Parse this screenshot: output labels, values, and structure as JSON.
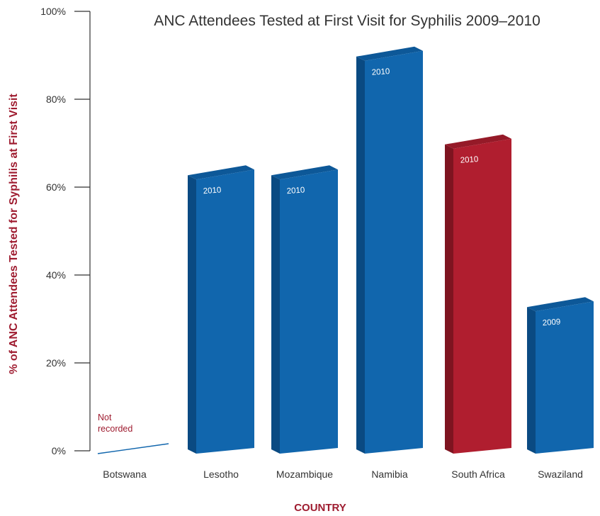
{
  "chart_data": {
    "type": "bar",
    "title": "ANC Attendees Tested at First Visit for Syphilis 2009–2010",
    "ylabel": "% of ANC Attendees Tested for Syphilis at First Visit",
    "xlabel": "COUNTRY",
    "ylim": [
      0,
      100
    ],
    "yticks": [
      "0%",
      "20%",
      "40%",
      "60%",
      "80%",
      "100%"
    ],
    "categories": [
      "Botswana",
      "Lesotho",
      "Mozambique",
      "Namibia",
      "South Africa",
      "Swaziland"
    ],
    "values": [
      null,
      64,
      64,
      91,
      71,
      34
    ],
    "bar_labels": [
      "",
      "2010",
      "2010",
      "2010",
      "2010",
      "2009"
    ],
    "annotations": [
      {
        "category": "Botswana",
        "text": [
          "Not",
          "recorded"
        ]
      }
    ],
    "highlight": {
      "category": "South Africa",
      "color": "#b01e2f"
    },
    "bar_color": "#1166ad",
    "grid": false
  },
  "colors": {
    "bar": "#1166ad",
    "bar_side": "#0a4a82",
    "bar_top": "#0d5898",
    "highlight": "#b01e2f",
    "highlight_side": "#7e1420",
    "highlight_top": "#951a28",
    "label": "#9e1b2f",
    "axis": "#333333"
  }
}
